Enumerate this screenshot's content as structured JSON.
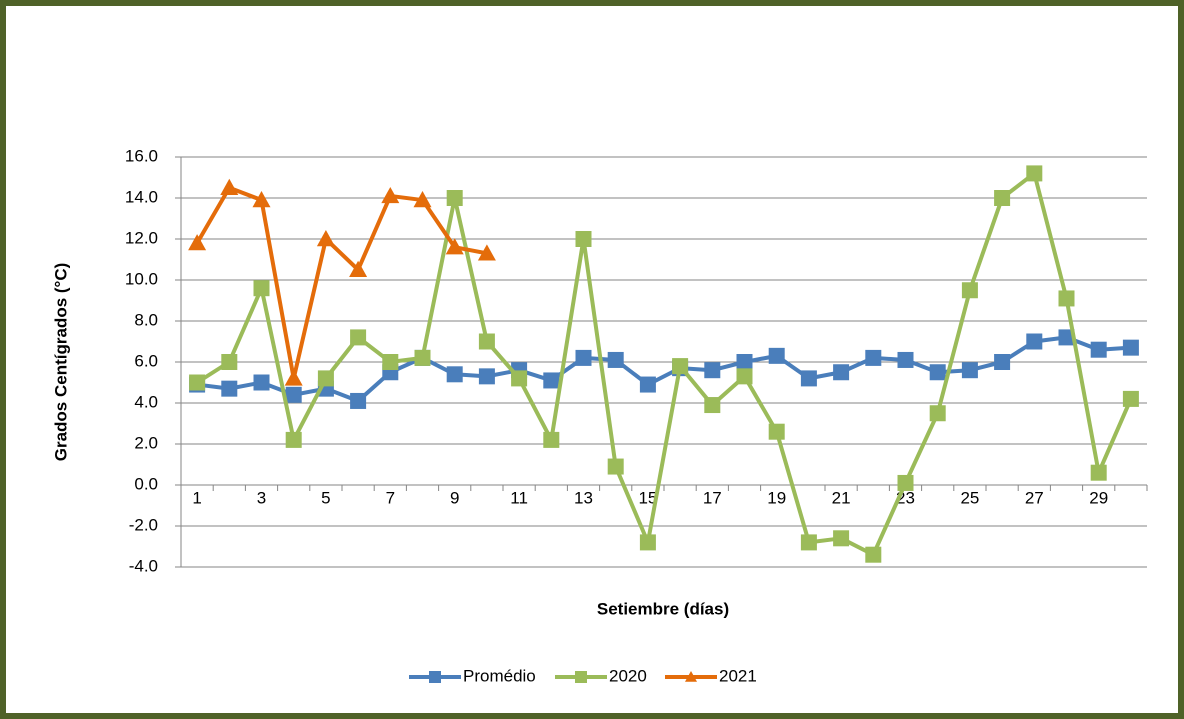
{
  "chart_data": {
    "type": "line",
    "y_axis_title": "Grados Centígrados (°C)",
    "x_axis_title": "Setiembre (días)",
    "categories": [
      "1",
      null,
      "3",
      null,
      "5",
      null,
      "7",
      null,
      "9",
      null,
      "11",
      null,
      "13",
      null,
      "15",
      null,
      "17",
      null,
      "19",
      null,
      "21",
      null,
      "23",
      null,
      "25",
      null,
      "27",
      null,
      "29",
      null
    ],
    "series": [
      {
        "name": "Promédio",
        "color": "#4a7ebb",
        "marker": "square",
        "values": [
          4.9,
          4.7,
          5.0,
          4.4,
          4.7,
          4.1,
          5.5,
          6.2,
          5.4,
          5.3,
          5.6,
          5.1,
          6.2,
          6.1,
          4.9,
          5.7,
          5.6,
          6.0,
          6.3,
          5.2,
          5.5,
          6.2,
          6.1,
          5.5,
          5.6,
          6.0,
          7.0,
          7.2,
          6.6,
          6.7
        ]
      },
      {
        "name": "2020",
        "color": "#9bbb59",
        "marker": "square",
        "values": [
          5.0,
          6.0,
          9.6,
          2.2,
          5.2,
          7.2,
          6.0,
          6.2,
          14.0,
          7.0,
          5.2,
          2.2,
          12.0,
          0.9,
          -2.8,
          5.8,
          3.9,
          5.3,
          2.6,
          -2.8,
          -2.6,
          -3.4,
          0.1,
          3.5,
          9.5,
          14.0,
          15.2,
          9.1,
          0.6,
          4.2
        ]
      },
      {
        "name": "2021",
        "color": "#e46c0a",
        "marker": "triangle",
        "values": [
          11.8,
          14.5,
          13.9,
          5.2,
          12.0,
          10.5,
          14.1,
          13.9,
          11.6,
          11.3,
          null,
          null,
          null,
          null,
          null,
          null,
          null,
          null,
          null,
          null,
          null,
          null,
          null,
          null,
          null,
          null,
          null,
          null,
          null,
          null
        ]
      }
    ],
    "ylim": [
      -4,
      16
    ],
    "yticks": [
      {
        "value": -4,
        "label": "-4.0"
      },
      {
        "value": -2,
        "label": "-2.0"
      },
      {
        "value": 0,
        "label": "0.0"
      },
      {
        "value": 2,
        "label": "2.0"
      },
      {
        "value": 4,
        "label": "4.0"
      },
      {
        "value": 6,
        "label": "6.0"
      },
      {
        "value": 8,
        "label": "8.0"
      },
      {
        "value": 10,
        "label": "10.0"
      },
      {
        "value": 12,
        "label": "12.0"
      },
      {
        "value": 14,
        "label": "14.0"
      },
      {
        "value": 16,
        "label": "16.0"
      }
    ],
    "grid": true,
    "legend_position": "bottom"
  }
}
